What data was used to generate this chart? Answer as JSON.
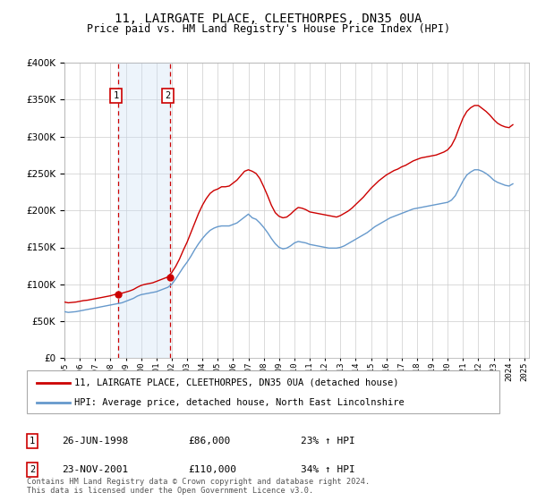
{
  "title": "11, LAIRGATE PLACE, CLEETHORPES, DN35 0UA",
  "subtitle": "Price paid vs. HM Land Registry's House Price Index (HPI)",
  "legend_label_red": "11, LAIRGATE PLACE, CLEETHORPES, DN35 0UA (detached house)",
  "legend_label_blue": "HPI: Average price, detached house, North East Lincolnshire",
  "transaction1_label": "26-JUN-1998",
  "transaction1_price": "£86,000",
  "transaction1_hpi": "23% ↑ HPI",
  "transaction2_label": "23-NOV-2001",
  "transaction2_price": "£110,000",
  "transaction2_hpi": "34% ↑ HPI",
  "footer": "Contains HM Land Registry data © Crown copyright and database right 2024.\nThis data is licensed under the Open Government Licence v3.0.",
  "ylim": [
    0,
    400000
  ],
  "yticks": [
    0,
    50000,
    100000,
    150000,
    200000,
    250000,
    300000,
    350000,
    400000
  ],
  "red_color": "#cc0000",
  "blue_color": "#6699cc",
  "shaded_color": "#cce0f5",
  "transaction1_x": 1998.5,
  "transaction2_x": 2001.9,
  "hpi_data": {
    "years": [
      1995.0,
      1995.25,
      1995.5,
      1995.75,
      1996.0,
      1996.25,
      1996.5,
      1996.75,
      1997.0,
      1997.25,
      1997.5,
      1997.75,
      1998.0,
      1998.25,
      1998.5,
      1998.75,
      1999.0,
      1999.25,
      1999.5,
      1999.75,
      2000.0,
      2000.25,
      2000.5,
      2000.75,
      2001.0,
      2001.25,
      2001.5,
      2001.75,
      2002.0,
      2002.25,
      2002.5,
      2002.75,
      2003.0,
      2003.25,
      2003.5,
      2003.75,
      2004.0,
      2004.25,
      2004.5,
      2004.75,
      2005.0,
      2005.25,
      2005.5,
      2005.75,
      2006.0,
      2006.25,
      2006.5,
      2006.75,
      2007.0,
      2007.25,
      2007.5,
      2007.75,
      2008.0,
      2008.25,
      2008.5,
      2008.75,
      2009.0,
      2009.25,
      2009.5,
      2009.75,
      2010.0,
      2010.25,
      2010.5,
      2010.75,
      2011.0,
      2011.25,
      2011.5,
      2011.75,
      2012.0,
      2012.25,
      2012.5,
      2012.75,
      2013.0,
      2013.25,
      2013.5,
      2013.75,
      2014.0,
      2014.25,
      2014.5,
      2014.75,
      2015.0,
      2015.25,
      2015.5,
      2015.75,
      2016.0,
      2016.25,
      2016.5,
      2016.75,
      2017.0,
      2017.25,
      2017.5,
      2017.75,
      2018.0,
      2018.25,
      2018.5,
      2018.75,
      2019.0,
      2019.25,
      2019.5,
      2019.75,
      2020.0,
      2020.25,
      2020.5,
      2020.75,
      2021.0,
      2021.25,
      2021.5,
      2021.75,
      2022.0,
      2022.25,
      2022.5,
      2022.75,
      2023.0,
      2023.25,
      2023.5,
      2023.75,
      2024.0,
      2024.25
    ],
    "values": [
      63000,
      62000,
      62500,
      63000,
      64000,
      65000,
      66000,
      67000,
      68000,
      69000,
      70000,
      71000,
      72000,
      73000,
      74000,
      75000,
      77000,
      79000,
      81000,
      84000,
      86000,
      87000,
      88000,
      89000,
      90000,
      92000,
      94000,
      96000,
      100000,
      107000,
      115000,
      123000,
      130000,
      138000,
      147000,
      155000,
      162000,
      168000,
      173000,
      176000,
      178000,
      179000,
      179000,
      179000,
      181000,
      183000,
      187000,
      191000,
      195000,
      190000,
      188000,
      183000,
      177000,
      170000,
      162000,
      155000,
      150000,
      148000,
      149000,
      152000,
      156000,
      158000,
      157000,
      156000,
      154000,
      153000,
      152000,
      151000,
      150000,
      149000,
      149000,
      149000,
      150000,
      152000,
      155000,
      158000,
      161000,
      164000,
      167000,
      170000,
      174000,
      178000,
      181000,
      184000,
      187000,
      190000,
      192000,
      194000,
      196000,
      198000,
      200000,
      202000,
      203000,
      204000,
      205000,
      206000,
      207000,
      208000,
      209000,
      210000,
      211000,
      214000,
      220000,
      230000,
      240000,
      248000,
      252000,
      255000,
      255000,
      253000,
      250000,
      246000,
      241000,
      238000,
      236000,
      234000,
      233000,
      236000
    ]
  },
  "price_data": {
    "years": [
      1995.0,
      1995.25,
      1995.5,
      1995.75,
      1996.0,
      1996.25,
      1996.5,
      1996.75,
      1997.0,
      1997.25,
      1997.5,
      1997.75,
      1998.0,
      1998.25,
      1998.5,
      1998.75,
      1999.0,
      1999.25,
      1999.5,
      1999.75,
      2000.0,
      2000.25,
      2000.5,
      2000.75,
      2001.0,
      2001.25,
      2001.5,
      2001.75,
      2002.0,
      2002.25,
      2002.5,
      2002.75,
      2003.0,
      2003.25,
      2003.5,
      2003.75,
      2004.0,
      2004.25,
      2004.5,
      2004.75,
      2005.0,
      2005.25,
      2005.5,
      2005.75,
      2006.0,
      2006.25,
      2006.5,
      2006.75,
      2007.0,
      2007.25,
      2007.5,
      2007.75,
      2008.0,
      2008.25,
      2008.5,
      2008.75,
      2009.0,
      2009.25,
      2009.5,
      2009.75,
      2010.0,
      2010.25,
      2010.5,
      2010.75,
      2011.0,
      2011.25,
      2011.5,
      2011.75,
      2012.0,
      2012.25,
      2012.5,
      2012.75,
      2013.0,
      2013.25,
      2013.5,
      2013.75,
      2014.0,
      2014.25,
      2014.5,
      2014.75,
      2015.0,
      2015.25,
      2015.5,
      2015.75,
      2016.0,
      2016.25,
      2016.5,
      2016.75,
      2017.0,
      2017.25,
      2017.5,
      2017.75,
      2018.0,
      2018.25,
      2018.5,
      2018.75,
      2019.0,
      2019.25,
      2019.5,
      2019.75,
      2020.0,
      2020.25,
      2020.5,
      2020.75,
      2021.0,
      2021.25,
      2021.5,
      2021.75,
      2022.0,
      2022.25,
      2022.5,
      2022.75,
      2023.0,
      2023.25,
      2023.5,
      2023.75,
      2024.0,
      2024.25
    ],
    "values": [
      76000,
      75000,
      75500,
      76000,
      77000,
      78000,
      78500,
      79500,
      80500,
      81500,
      82500,
      83500,
      84500,
      86000,
      87000,
      88000,
      89500,
      91000,
      93000,
      96000,
      98500,
      100000,
      101000,
      102000,
      104000,
      106000,
      108000,
      110000,
      116000,
      124000,
      134000,
      146000,
      157000,
      170000,
      183000,
      196000,
      207000,
      216000,
      223000,
      227000,
      229000,
      232000,
      232000,
      233000,
      237000,
      241000,
      247000,
      253000,
      255000,
      253000,
      250000,
      243000,
      232000,
      220000,
      207000,
      197000,
      192000,
      190000,
      191000,
      195000,
      200000,
      204000,
      203000,
      201000,
      198000,
      197000,
      196000,
      195000,
      194000,
      193000,
      192000,
      191000,
      193000,
      196000,
      199000,
      203000,
      208000,
      213000,
      218000,
      224000,
      230000,
      235000,
      240000,
      244000,
      248000,
      251000,
      254000,
      256000,
      259000,
      261000,
      264000,
      267000,
      269000,
      271000,
      272000,
      273000,
      274000,
      275000,
      277000,
      279000,
      282000,
      288000,
      298000,
      312000,
      325000,
      334000,
      339000,
      342000,
      342000,
      338000,
      334000,
      329000,
      323000,
      318000,
      315000,
      313000,
      312000,
      316000
    ]
  }
}
